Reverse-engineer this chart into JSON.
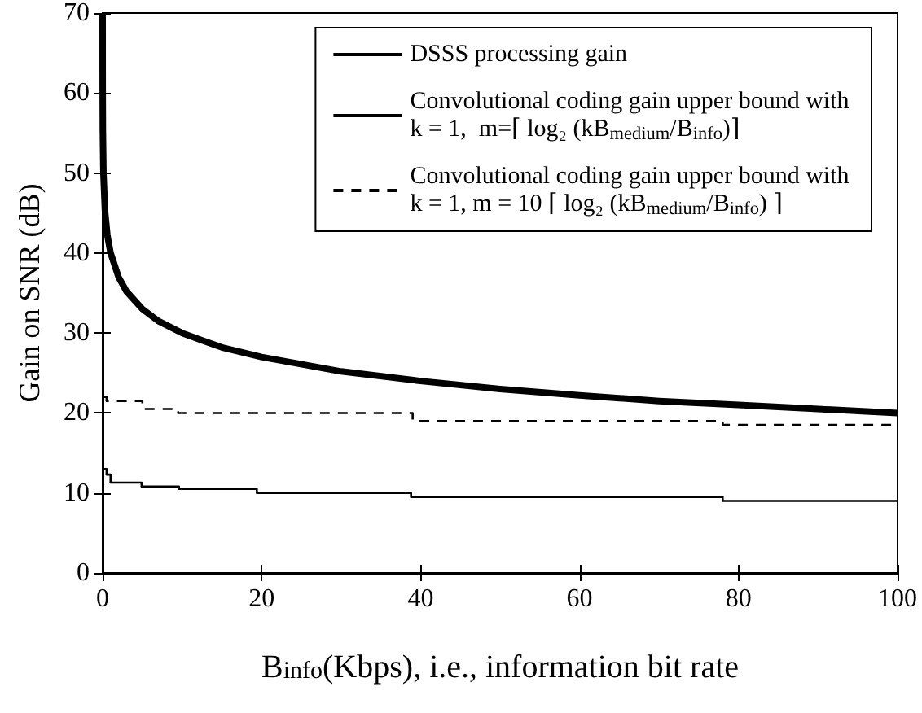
{
  "chart_data": {
    "type": "line",
    "xlabel": "B$_{info}$(Kbps), i.e., information bit rate",
    "ylabel": "Gain on SNR (dB)",
    "xlim": [
      0,
      100
    ],
    "ylim": [
      0,
      70
    ],
    "xticks": [
      0,
      20,
      40,
      60,
      80,
      100
    ],
    "yticks": [
      0,
      10,
      20,
      30,
      40,
      50,
      60,
      70
    ],
    "grid": false,
    "legend": "top right",
    "marker": "none",
    "series": [
      {
        "name": "DSSS processing gain",
        "color": "#000000",
        "line_style": "solid",
        "x": [
          0.001,
          0.005,
          0.01,
          0.03,
          0.1,
          0.3,
          0.6,
          1,
          2,
          3,
          5,
          7,
          10,
          15,
          20,
          30,
          40,
          50,
          60,
          70,
          80,
          90,
          100
        ],
        "values": [
          70,
          63,
          60,
          55.2,
          50,
          45.2,
          42.2,
          40,
          37,
          35.2,
          33,
          31.5,
          30,
          28.2,
          27,
          25.2,
          24,
          23,
          22.2,
          21.5,
          21,
          20.5,
          20
        ]
      },
      {
        "name": "Convolutional coding gain upper bound with k = 1,  m=⌈ log₂ (kB$_{medium}$/B$_{info}$)⌉",
        "type": "step",
        "color": "#000000",
        "line_style": "solid",
        "x": [
          0.05,
          0.5,
          1,
          4.9,
          9.6,
          19.4,
          38.8,
          78,
          100
        ],
        "values": [
          13,
          12.3,
          11.3,
          10.8,
          10.5,
          10,
          9.5,
          9,
          9
        ]
      },
      {
        "name": "Convolutional coding gain upper bound with k = 1, m = 10 ⌈ log₂ (kB$_{medium}$/B$_{info}$) ⌉",
        "type": "step",
        "color": "#000000",
        "line_style": "dashed",
        "x": [
          0.05,
          0.5,
          5,
          9.5,
          39,
          78,
          100
        ],
        "values": [
          22,
          21.5,
          20.5,
          20,
          19,
          18.5,
          18.5
        ]
      }
    ]
  }
}
